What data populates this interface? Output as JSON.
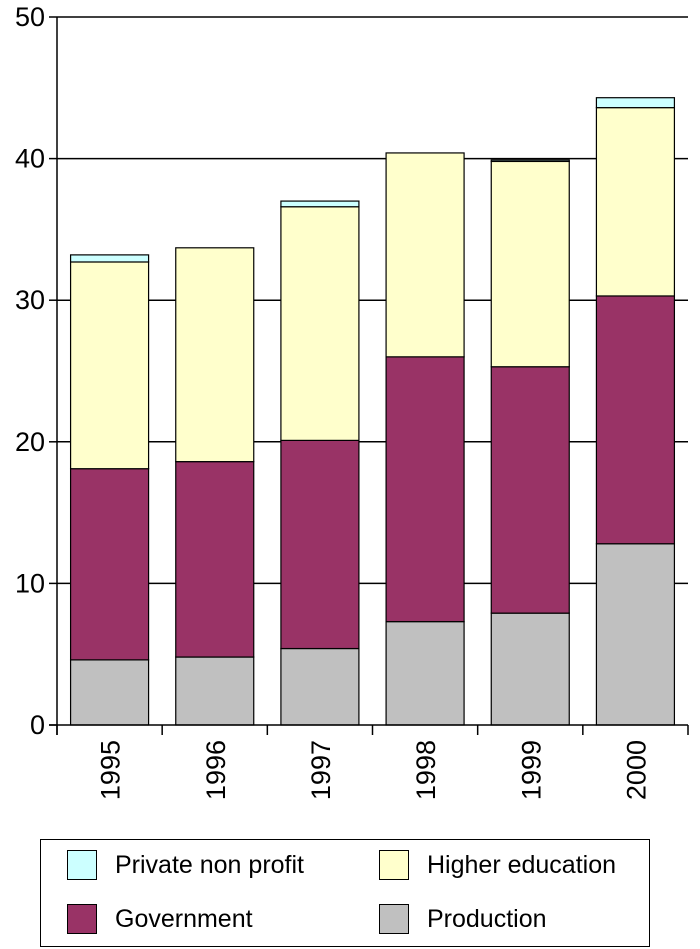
{
  "chart_data": {
    "type": "bar",
    "stacked": true,
    "categories": [
      "1995",
      "1996",
      "1997",
      "1998",
      "1999",
      "2000"
    ],
    "series": [
      {
        "name": "Production",
        "color": "#c0c0c0",
        "values": [
          4.6,
          4.8,
          5.4,
          7.3,
          7.9,
          12.8
        ]
      },
      {
        "name": "Government",
        "color": "#993366",
        "values": [
          13.5,
          13.8,
          14.7,
          18.7,
          17.4,
          17.5
        ]
      },
      {
        "name": "Higher education",
        "color": "#ffffcc",
        "values": [
          14.6,
          15.1,
          16.5,
          14.4,
          14.5,
          13.3
        ]
      },
      {
        "name": "Private non profit",
        "color": "#ccffff",
        "values": [
          0.5,
          0.0,
          0.4,
          0.0,
          0.1,
          0.7
        ]
      }
    ],
    "ylim": [
      0,
      50
    ],
    "yticks": [
      0,
      10,
      20,
      30,
      40,
      50
    ],
    "grid": true,
    "legend_position": "bottom"
  },
  "legend": [
    {
      "label": "Private non profit",
      "color": "#ccffff"
    },
    {
      "label": "Higher education",
      "color": "#ffffcc"
    },
    {
      "label": "Government",
      "color": "#993366"
    },
    {
      "label": "Production",
      "color": "#c0c0c0"
    }
  ]
}
